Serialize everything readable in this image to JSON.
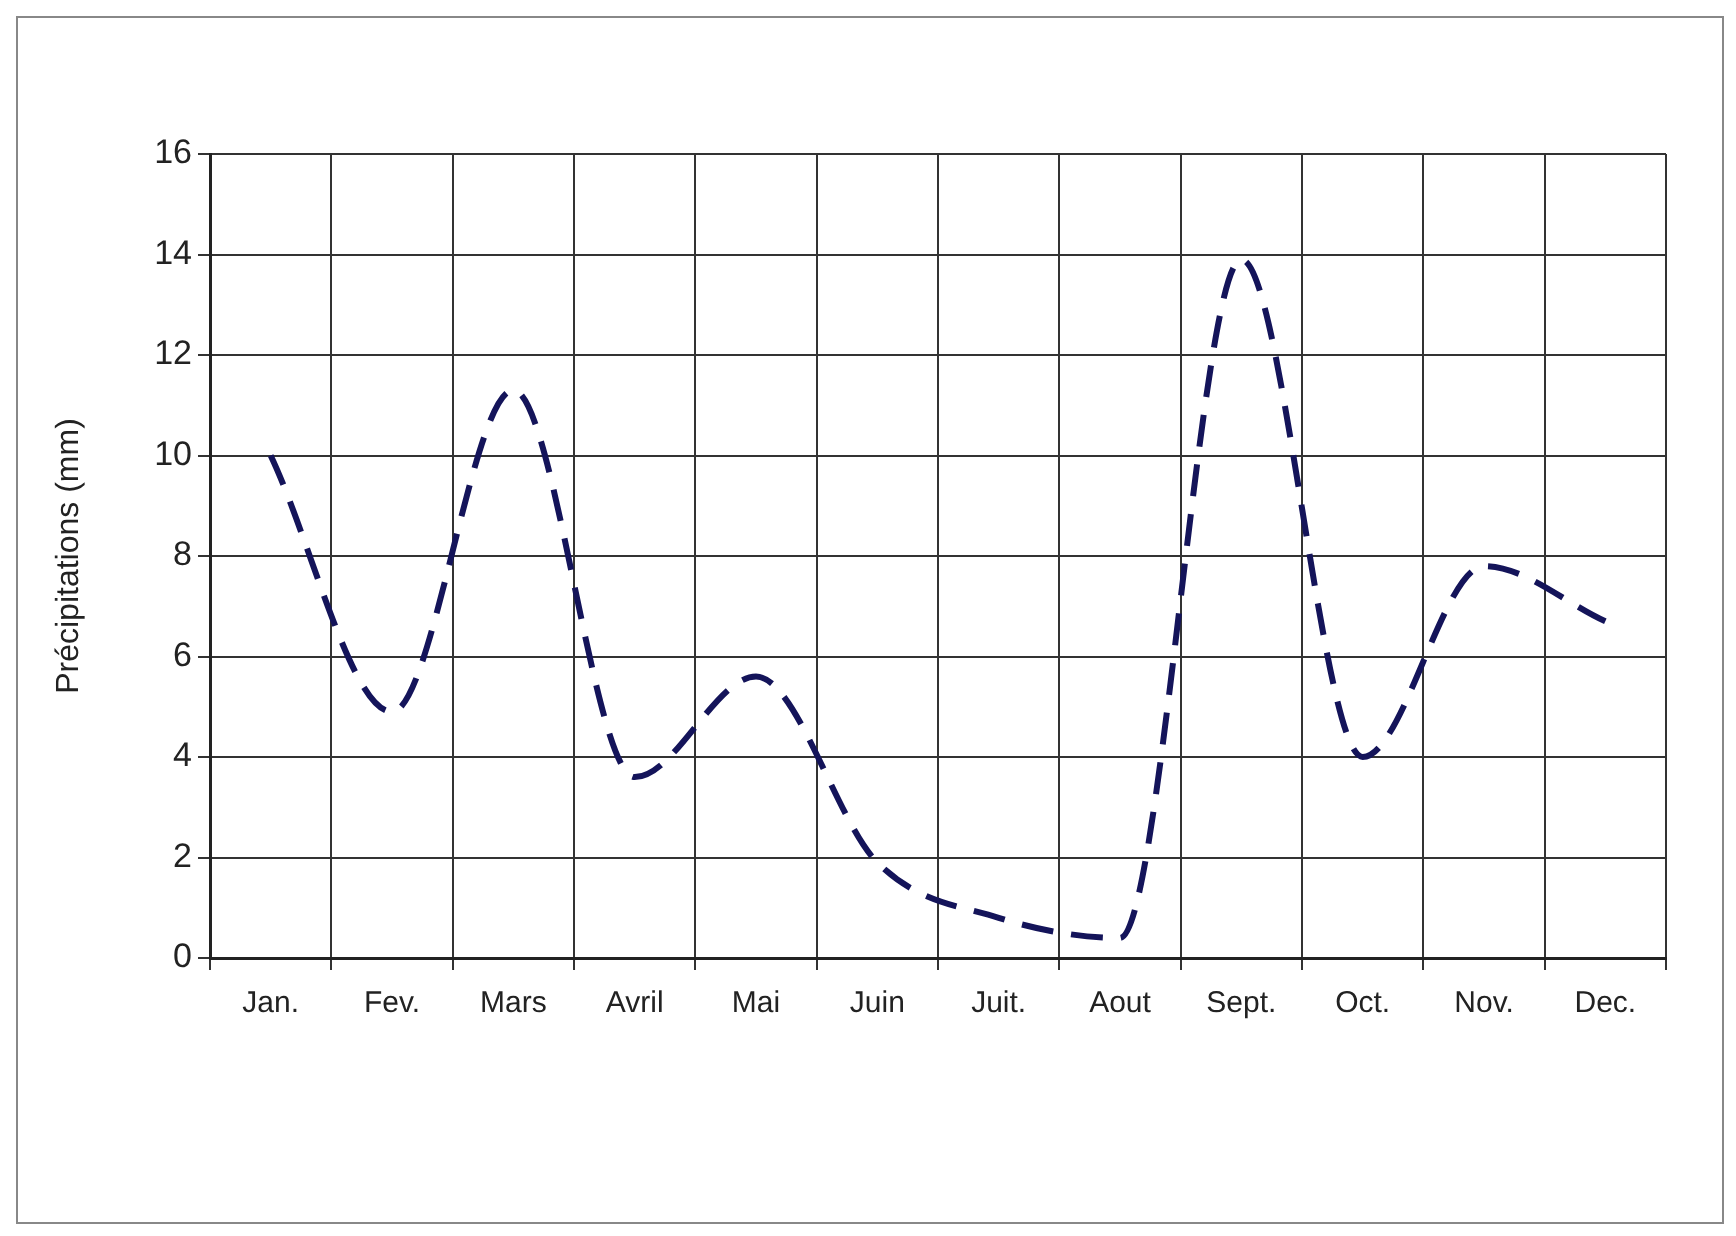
{
  "chart_data": {
    "type": "line",
    "ylabel": "Précipitations (mm)",
    "categories": [
      "Jan.",
      "Fev.",
      "Mars",
      "Avril",
      "Mai",
      "Juin",
      "Juit.",
      "Aout",
      "Sept.",
      "Oct.",
      "Nov.",
      "Dec."
    ],
    "series": [
      {
        "color": "#14145a",
        "values": [
          10.0,
          4.9,
          11.3,
          3.6,
          5.6,
          1.9,
          0.8,
          0.4,
          13.9,
          4.0,
          7.8,
          6.7
        ]
      }
    ],
    "ylim": [
      0,
      16
    ],
    "yticks": [
      0,
      2,
      4,
      6,
      8,
      10,
      12,
      14,
      16
    ],
    "grid": true,
    "legend": false,
    "marker": "none",
    "line_style": "dashed"
  }
}
